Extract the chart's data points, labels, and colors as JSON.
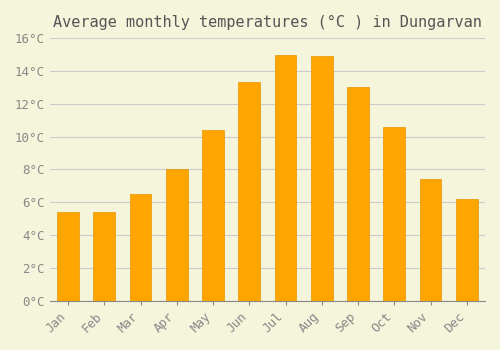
{
  "title": "Average monthly temperatures (°C ) in Dungarvan",
  "months": [
    "Jan",
    "Feb",
    "Mar",
    "Apr",
    "May",
    "Jun",
    "Jul",
    "Aug",
    "Sep",
    "Oct",
    "Nov",
    "Dec"
  ],
  "values": [
    5.4,
    5.4,
    6.5,
    8.0,
    10.4,
    13.3,
    15.0,
    14.9,
    13.0,
    10.6,
    7.4,
    6.2
  ],
  "bar_color": "#FFA500",
  "bar_edge_color": "#E69500",
  "background_color": "#F5F5DC",
  "grid_color": "#CCCCCC",
  "ylim": [
    0,
    16
  ],
  "ytick_step": 2,
  "title_fontsize": 11,
  "tick_fontsize": 9,
  "font_family": "monospace"
}
